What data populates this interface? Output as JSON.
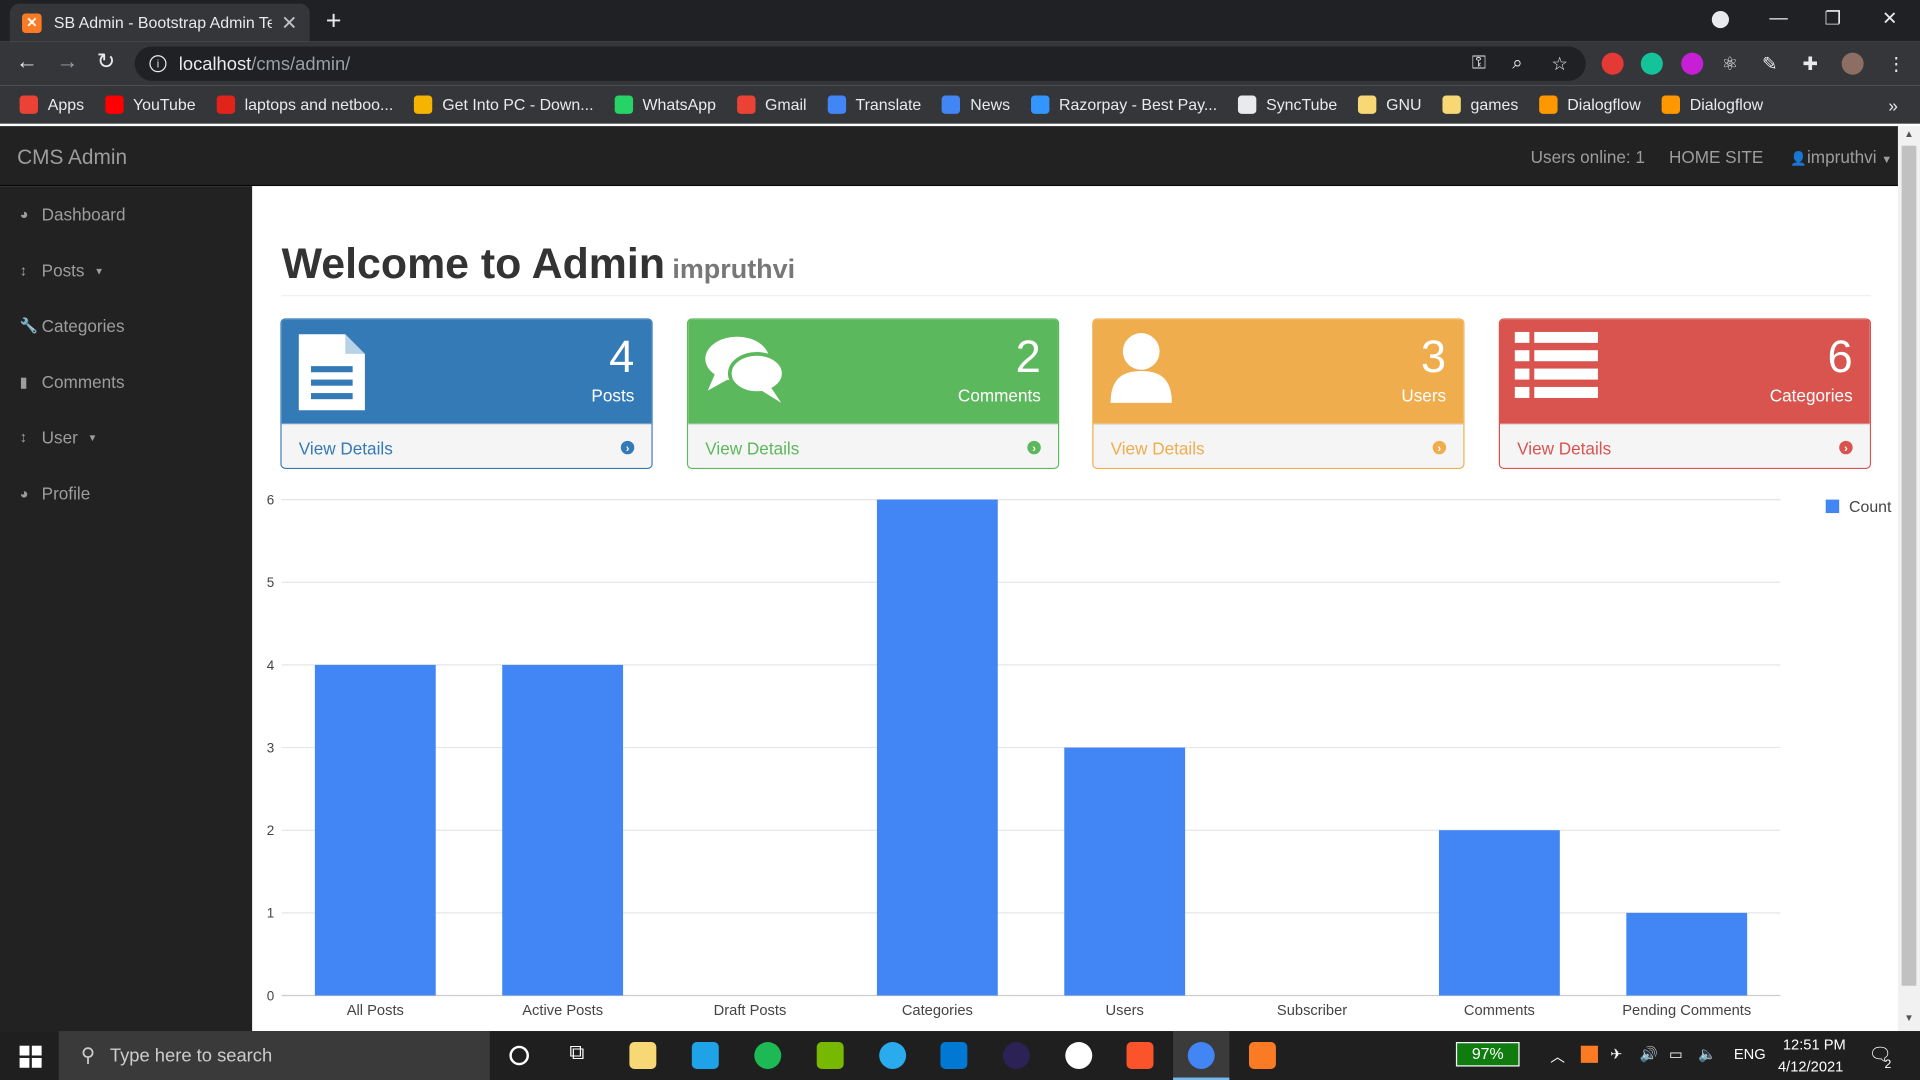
{
  "browser": {
    "tab_title": "SB Admin - Bootstrap Admin Ten",
    "url_host": "localhost",
    "url_path": "/cms/admin/",
    "bookmarks": [
      {
        "label": "Apps",
        "icon": "apps-grid-icon",
        "color": "#ea4335"
      },
      {
        "label": "YouTube",
        "icon": "youtube-icon",
        "color": "#ff0000"
      },
      {
        "label": "laptops and netboo...",
        "icon": "lenovo-icon",
        "color": "#e2231a"
      },
      {
        "label": "Get Into PC - Down...",
        "icon": "getintopc-icon",
        "color": "#f4b400"
      },
      {
        "label": "WhatsApp",
        "icon": "whatsapp-icon",
        "color": "#25d366"
      },
      {
        "label": "Gmail",
        "icon": "gmail-icon",
        "color": "#ea4335"
      },
      {
        "label": "Translate",
        "icon": "translate-icon",
        "color": "#4285f4"
      },
      {
        "label": "News",
        "icon": "news-icon",
        "color": "#4285f4"
      },
      {
        "label": "Razorpay - Best Pay...",
        "icon": "razorpay-icon",
        "color": "#3395ff"
      },
      {
        "label": "SyncTube",
        "icon": "synctube-icon",
        "color": "#e8eaed"
      },
      {
        "label": "GNU",
        "icon": "folder-icon",
        "color": "#f8d775"
      },
      {
        "label": "games",
        "icon": "folder-icon",
        "color": "#f8d775"
      },
      {
        "label": "Dialogflow",
        "icon": "dialogflow-icon",
        "color": "#ff9800"
      },
      {
        "label": "Dialogflow",
        "icon": "dialogflow-icon",
        "color": "#ff9800"
      }
    ]
  },
  "app": {
    "brand": "CMS Admin",
    "users_online": "Users online: 1",
    "home_site": "HOME SITE",
    "user_menu": "impruthvi"
  },
  "sidebar": {
    "items": [
      {
        "label": "Dashboard",
        "icon": "dashboard-icon"
      },
      {
        "label": "Posts",
        "icon": "arrows-v-icon",
        "dropdown": true
      },
      {
        "label": "Categories",
        "icon": "wrench-icon"
      },
      {
        "label": "Comments",
        "icon": "file-icon"
      },
      {
        "label": "User",
        "icon": "arrows-v-icon",
        "dropdown": true
      },
      {
        "label": "Profile",
        "icon": "dashboard-icon"
      }
    ]
  },
  "page": {
    "title": "Welcome to Admin",
    "subtitle": "impruthvi"
  },
  "panels": [
    {
      "count": "4",
      "label": "Posts",
      "details": "View Details",
      "icon": "file-text-icon",
      "color": "#337ab7"
    },
    {
      "count": "2",
      "label": "Comments",
      "details": "View Details",
      "icon": "comments-icon",
      "color": "#5cb85c"
    },
    {
      "count": "3",
      "label": "Users",
      "details": "View Details",
      "icon": "user-icon",
      "color": "#f0ad4e"
    },
    {
      "count": "6",
      "label": "Categories",
      "details": "View Details",
      "icon": "list-icon",
      "color": "#d9534f"
    }
  ],
  "chart_data": {
    "type": "bar",
    "categories": [
      "All Posts",
      "Active Posts",
      "Draft Posts",
      "Categories",
      "Users",
      "Subscriber",
      "Comments",
      "Pending Comments"
    ],
    "series": [
      {
        "name": "Count",
        "values": [
          4,
          4,
          0,
          6,
          3,
          0,
          2,
          1
        ],
        "color": "#4285f4"
      }
    ],
    "yticks": [
      "0",
      "1",
      "2",
      "3",
      "4",
      "5",
      "6"
    ],
    "ylim": [
      0,
      6
    ],
    "grid": true,
    "legend": "top-right"
  },
  "taskbar": {
    "search_placeholder": "Type here to search",
    "battery": "97%",
    "language": "ENG",
    "time": "12:51 PM",
    "date": "4/12/2021",
    "notifications": "2"
  }
}
